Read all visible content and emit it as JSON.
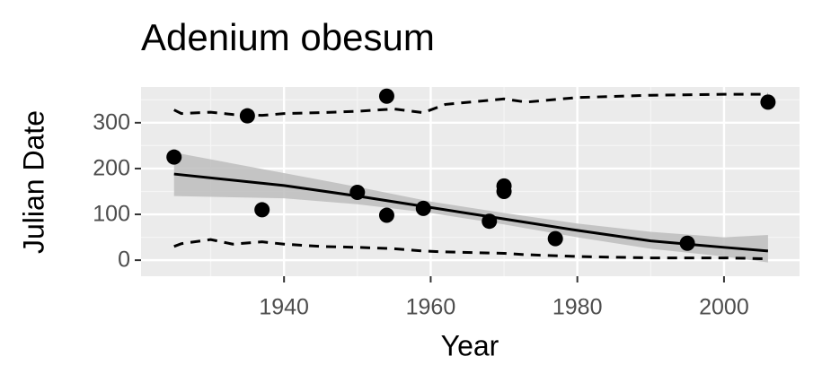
{
  "chart_data": {
    "type": "scatter",
    "title": "Adenium obesum",
    "x_label": "Year",
    "y_label": "Julian Date",
    "xlim": [
      1920.5,
      2010.3
    ],
    "xticks": [
      1940,
      1960,
      1980,
      2000
    ],
    "xminor": [
      1930,
      1950,
      1970,
      1990
    ],
    "ylim": [
      -35,
      378
    ],
    "yticks": [
      0,
      100,
      200,
      300
    ],
    "yminor": [
      50,
      150,
      250,
      350
    ],
    "grid": true,
    "points": {
      "color": "#000000",
      "x": [
        1925,
        1935,
        1937,
        1950,
        1954,
        1954,
        1959,
        1968,
        1970,
        1970,
        1977,
        1995,
        2006
      ],
      "y": [
        225,
        315,
        110,
        148,
        358,
        98,
        113,
        85,
        162,
        150,
        47,
        37,
        345
      ]
    },
    "trend": {
      "color": "#000000",
      "band_color": "#bdbdbd",
      "x": [
        1925,
        1940,
        1950,
        1960,
        1970,
        1980,
        1990,
        2000,
        2006
      ],
      "values": [
        188,
        163,
        140,
        115,
        90,
        65,
        42,
        28,
        20
      ],
      "lower": [
        140,
        135,
        122,
        103,
        78,
        50,
        25,
        8,
        -5
      ],
      "upper": [
        235,
        190,
        160,
        128,
        103,
        80,
        62,
        50,
        55
      ]
    },
    "bounds": {
      "color": "#000000",
      "x": [
        1925,
        1926,
        1930,
        1933,
        1937,
        1940,
        1945,
        1950,
        1955,
        1959,
        1962,
        1970,
        1973,
        1980,
        1990,
        2000,
        2006
      ],
      "upper": [
        328,
        320,
        323,
        318,
        316,
        320,
        322,
        325,
        330,
        322,
        340,
        352,
        345,
        355,
        360,
        362,
        362
      ],
      "lower": [
        30,
        36,
        45,
        35,
        40,
        35,
        30,
        28,
        25,
        20,
        18,
        15,
        12,
        8,
        5,
        5,
        3
      ]
    }
  }
}
